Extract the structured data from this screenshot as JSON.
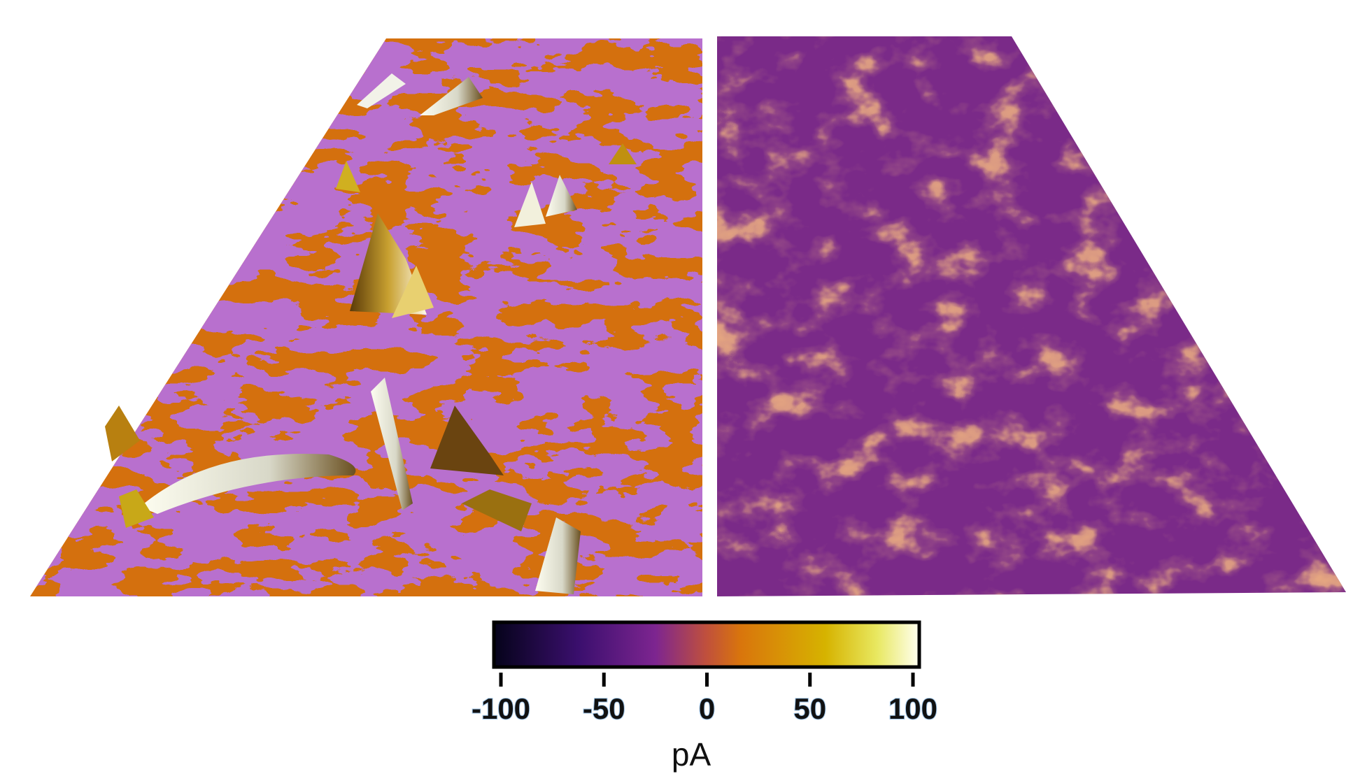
{
  "colorbar": {
    "label": "pA",
    "lim": [
      -100,
      100
    ],
    "ticks": [
      -100,
      -50,
      0,
      50,
      100
    ]
  }
}
